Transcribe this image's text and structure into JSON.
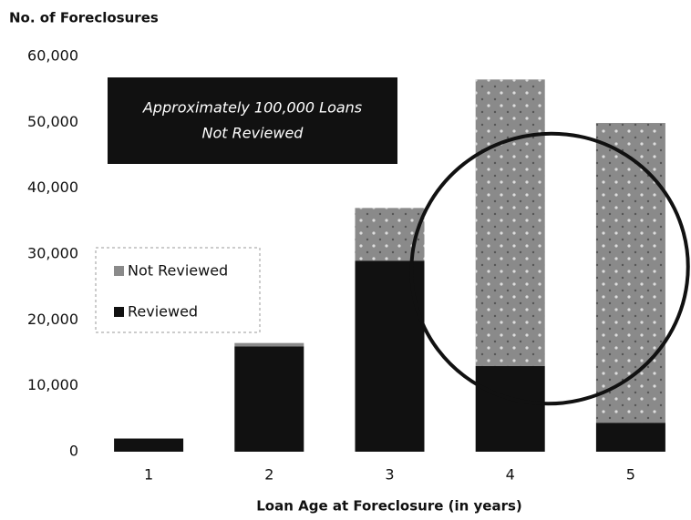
{
  "chart_data": {
    "type": "stacked_bar",
    "y_axis_label": "No. of Foreclosures",
    "x_axis_label": "Loan Age at Foreclosure (in years)",
    "categories": [
      "1",
      "2",
      "3",
      "4",
      "5"
    ],
    "series": [
      {
        "name": "Reviewed",
        "color": "#111111",
        "values": [
          2000,
          16000,
          29000,
          13000,
          4400
        ]
      },
      {
        "name": "Not Reviewed",
        "color": "#8a8a8a",
        "values": [
          0,
          500,
          8000,
          43500,
          45500
        ]
      }
    ],
    "ylim": [
      0,
      60000
    ],
    "yticks": [
      0,
      {
        "value": 10000,
        "label": "10,000"
      },
      {
        "value": 20000,
        "label": "20,000"
      },
      {
        "value": 30000,
        "label": "30,000"
      },
      {
        "value": 40000,
        "label": "40,000"
      },
      {
        "value": 50000,
        "label": "50,000"
      },
      {
        "value": 60000,
        "label": "60,000"
      }
    ],
    "annotation": [
      "Approximately 100,000 Loans",
      "Not Reviewed"
    ],
    "legend": "left"
  }
}
